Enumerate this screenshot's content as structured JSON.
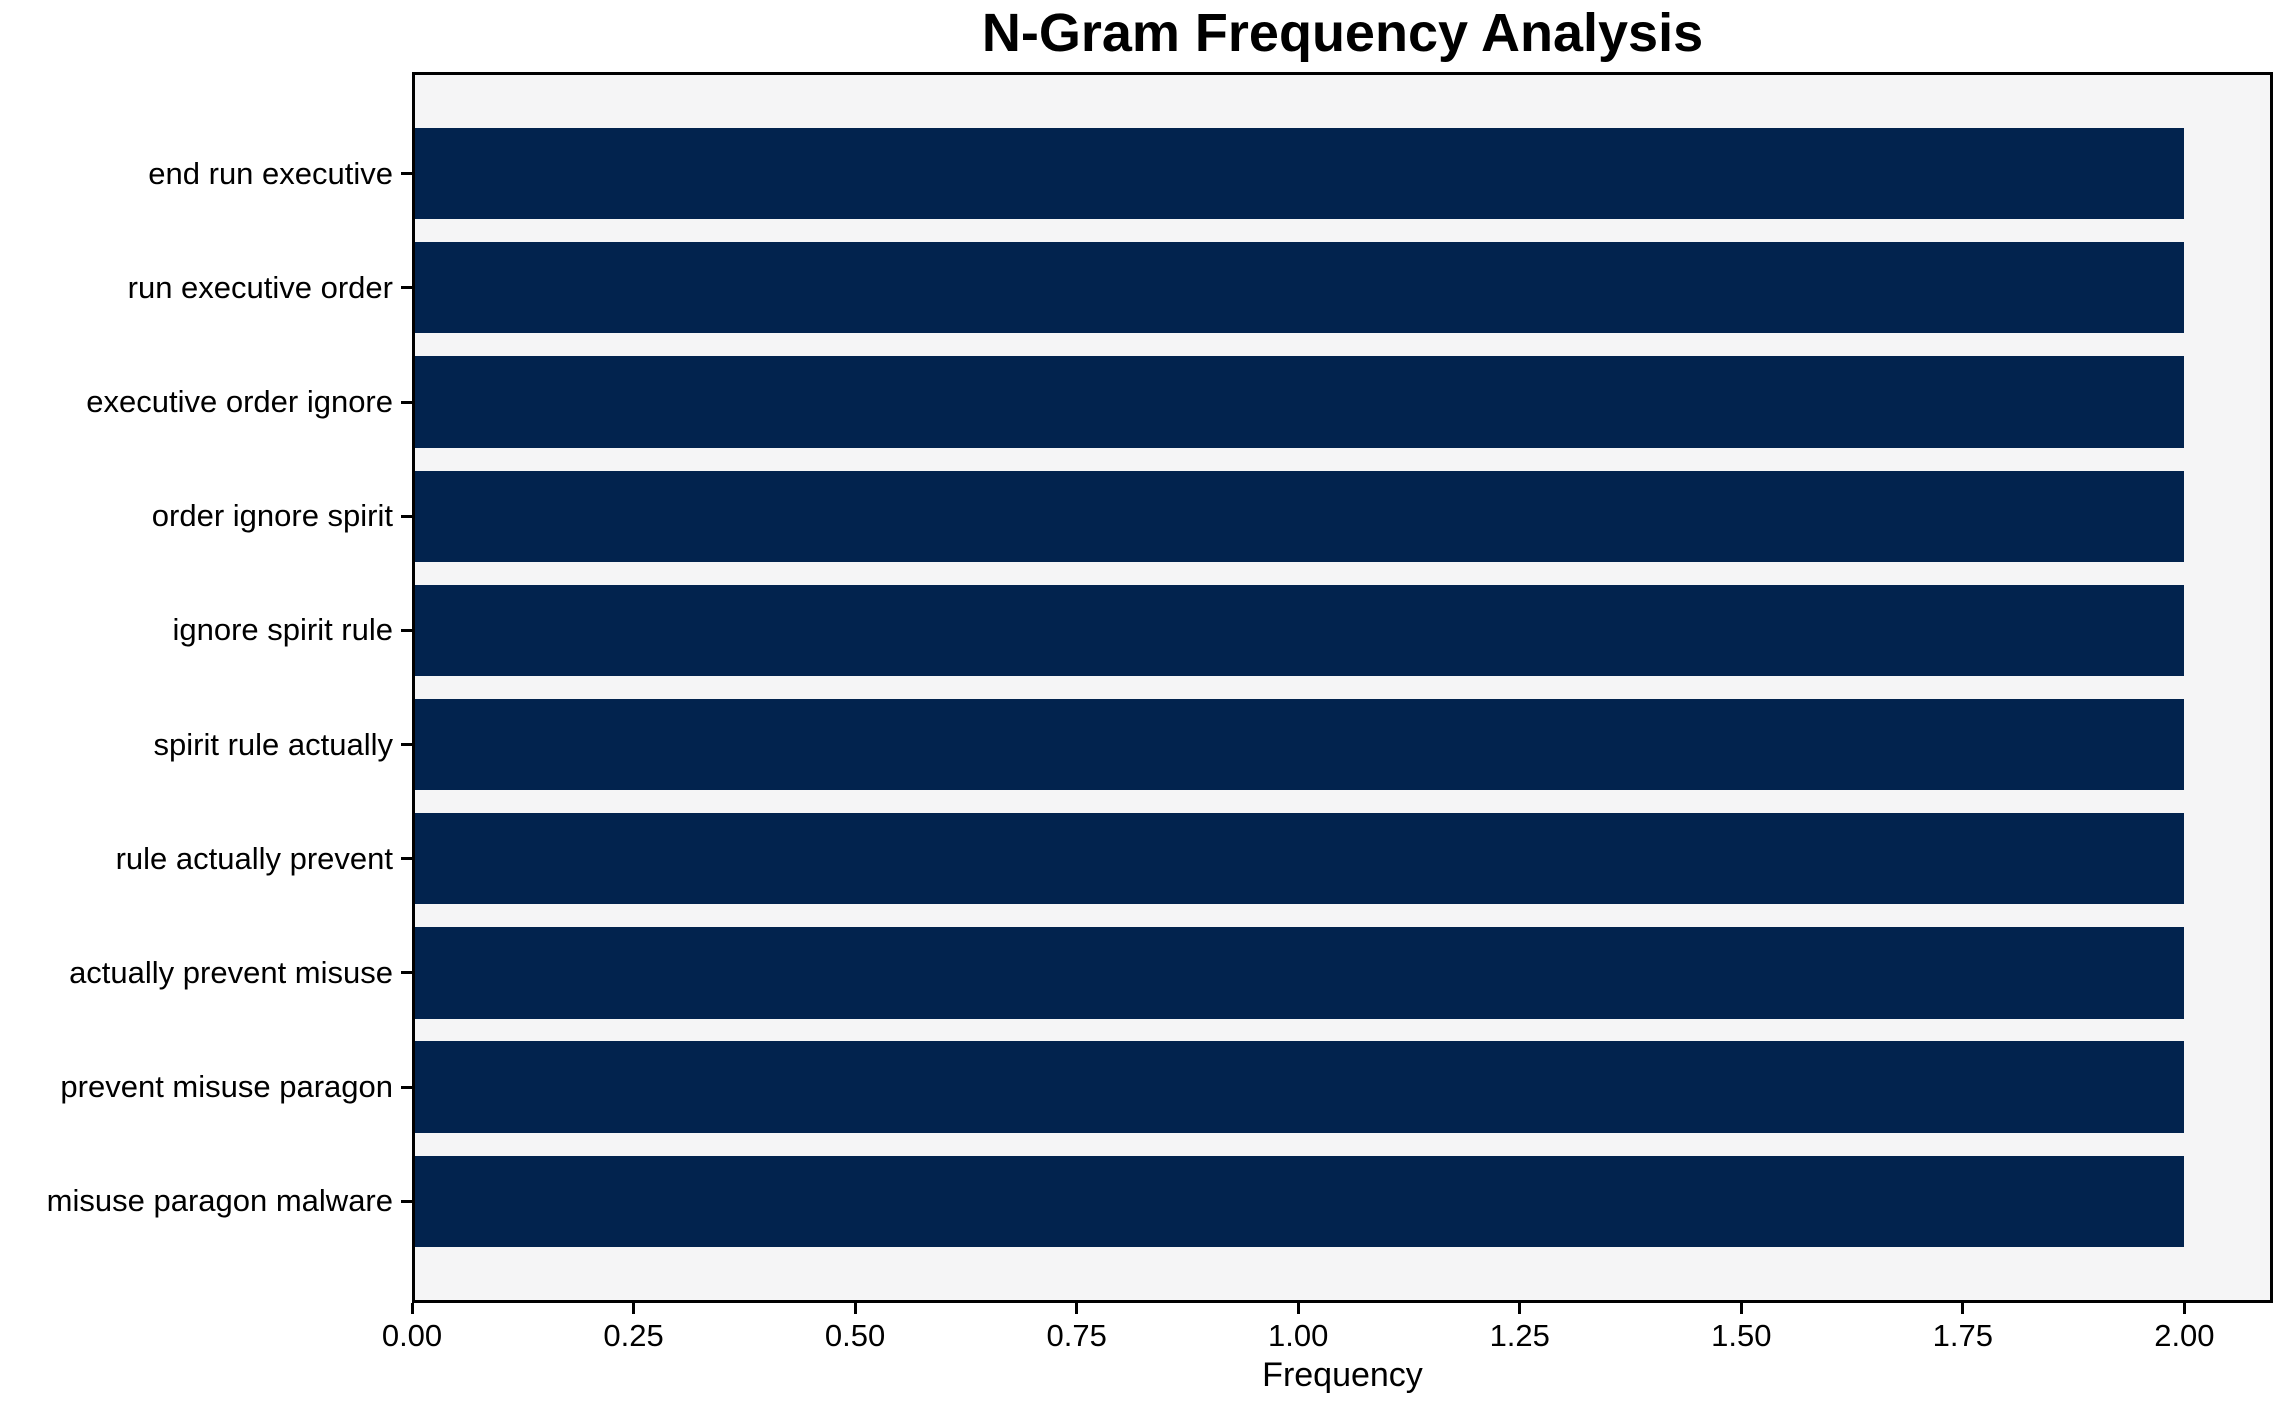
{
  "chart_data": {
    "type": "bar",
    "orientation": "horizontal",
    "title": "N-Gram Frequency Analysis",
    "xlabel": "Frequency",
    "ylabel": "",
    "categories": [
      "end run executive",
      "run executive order",
      "executive order ignore",
      "order ignore spirit",
      "ignore spirit rule",
      "spirit rule actually",
      "rule actually prevent",
      "actually prevent misuse",
      "prevent misuse paragon",
      "misuse paragon malware"
    ],
    "values": [
      2,
      2,
      2,
      2,
      2,
      2,
      2,
      2,
      2,
      2
    ],
    "xlim": [
      0,
      2.1
    ],
    "xticks": [
      0,
      0.25,
      0.5,
      0.75,
      1.0,
      1.25,
      1.5,
      1.75,
      2.0
    ],
    "xtick_labels": [
      "0.00",
      "0.25",
      "0.50",
      "0.75",
      "1.00",
      "1.25",
      "1.50",
      "1.75",
      "2.00"
    ],
    "grid": false,
    "legend": null,
    "colors": {
      "bar": "#02234e",
      "plot_background": "#f5f5f6",
      "figure_background": "#ffffff",
      "spine": "#000000",
      "text": "#000000"
    }
  }
}
